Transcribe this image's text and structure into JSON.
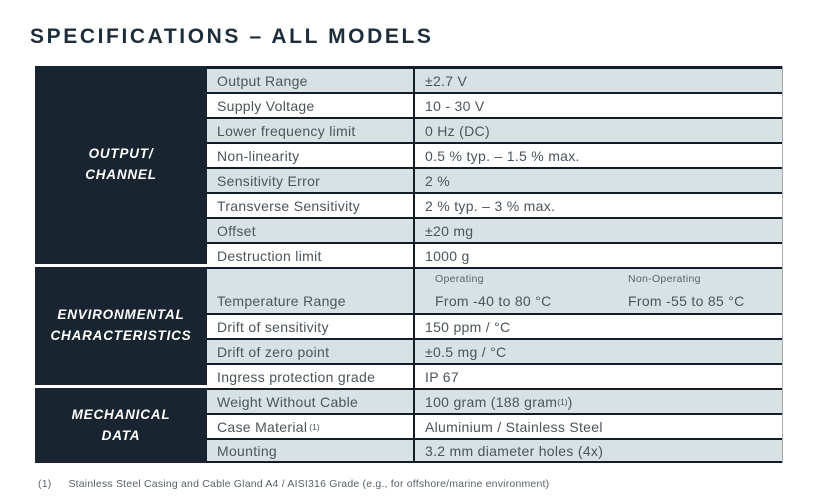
{
  "title": "SPECIFICATIONS – ALL MODELS",
  "colors": {
    "section_bg": "#18242f",
    "row_shaded": "#d8e1e3",
    "row_white": "#ffffff",
    "border_dark": "#121d27",
    "title_text": "#1e2d3a",
    "body_text": "#4b555c",
    "section_text": "#ffffff",
    "footnote_text": "#59626a"
  },
  "sections": [
    {
      "title_line1": "OUTPUT/",
      "title_line2": "CHANNEL",
      "rows": [
        {
          "label": "Output Range",
          "value": "±2.7 V"
        },
        {
          "label": "Supply Voltage",
          "value": "10 - 30 V"
        },
        {
          "label": "Lower frequency limit",
          "value": "0 Hz (DC)"
        },
        {
          "label": "Non-linearity",
          "value": "0.5 % typ. – 1.5 % max."
        },
        {
          "label": "Sensitivity Error",
          "value": "2 %"
        },
        {
          "label": "Transverse Sensitivity",
          "value": "2 % typ. – 3 % max."
        },
        {
          "label": "Offset",
          "value": "±20 mg"
        },
        {
          "label": "Destruction limit",
          "value": "1000 g"
        }
      ]
    },
    {
      "title_line1": "ENVIRONMENTAL",
      "title_line2": "CHARACTERISTICS",
      "temperature_row": {
        "label": "Temperature Range",
        "operating_label": "Operating",
        "operating_value": "From -40 to 80 °C",
        "non_operating_label": "Non-Operating",
        "non_operating_value": "From -55 to 85 °C"
      },
      "rows": [
        {
          "label": "Drift of sensitivity",
          "value": "150 ppm / °C"
        },
        {
          "label": "Drift of zero point",
          "value": "±0.5 mg / °C"
        },
        {
          "label": "Ingress protection grade",
          "value": "IP 67"
        }
      ]
    },
    {
      "title_line1": "MECHANICAL",
      "title_line2": "DATA",
      "rows": [
        {
          "label": "Weight Without Cable",
          "value_prefix": "100 gram (188 gram",
          "value_sup": "(1)",
          "value_suffix": ")"
        },
        {
          "label": "Case Material",
          "label_sup": "(1)",
          "value": "Aluminium / Stainless Steel"
        },
        {
          "label": "Mounting",
          "value": "3.2 mm diameter holes (4x)"
        }
      ]
    }
  ],
  "footnote": {
    "ref": "(1)",
    "text": "Stainless Steel Casing and Cable Gland A4 / AISI316 Grade (e.g., for offshore/marine environment)"
  }
}
